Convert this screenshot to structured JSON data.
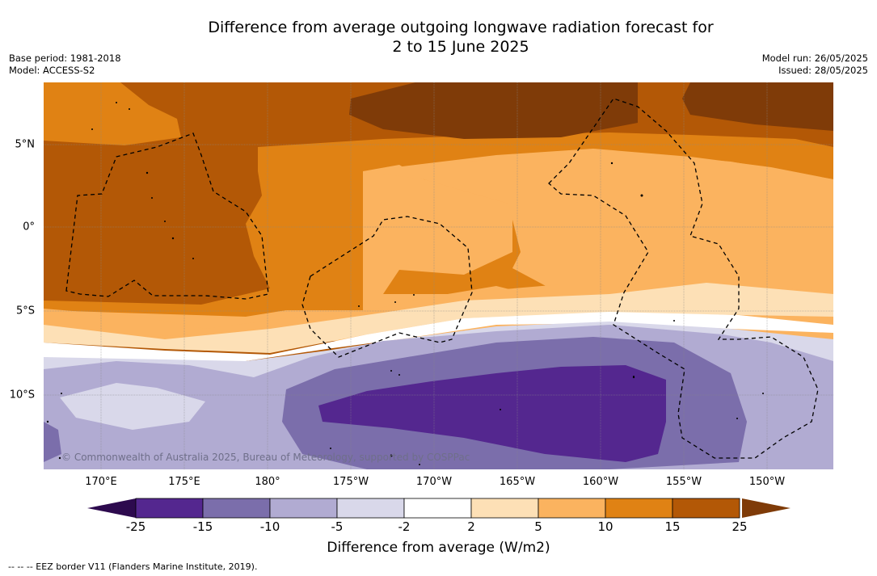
{
  "title_line1": "Difference from average outgoing longwave radiation forecast for",
  "title_line2": "2 to 15 June 2025",
  "base_period": "Base period: 1981-2018",
  "model": "Model: ACCESS-S2",
  "model_run": "Model run: 26/05/2025",
  "issued": "Issued: 28/05/2025",
  "copyright": "© Commonwealth of Australia 2025, Bureau of Meteorology, supported by COSPPac",
  "lat_labels": [
    "5°N",
    "0°",
    "5°S",
    "10°S"
  ],
  "lon_labels": [
    "170°E",
    "175°E",
    "180°",
    "175°W",
    "170°W",
    "165°W",
    "160°W",
    "155°W",
    "150°W"
  ],
  "colorbar": {
    "ticks": [
      "-25",
      "-15",
      "-10",
      "-5",
      "-2",
      "2",
      "5",
      "10",
      "15",
      "25"
    ],
    "colors": [
      "#2d0a4e",
      "#54278f",
      "#7b6eab",
      "#b1abd2",
      "#d9d8ea",
      "#ffffff",
      "#fde0b6",
      "#fbb35f",
      "#e08214",
      "#b35806",
      "#7f3b08"
    ],
    "label": "Difference from average (W/m2)"
  },
  "eez_legend": "--  --  -- EEZ border V11 (Flanders Marine Institute, 2019)."
}
